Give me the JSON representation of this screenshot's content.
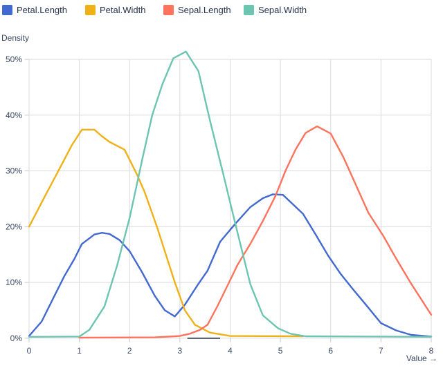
{
  "legend": {
    "note": "legend items are derived from chart_data.series"
  },
  "axes": {
    "y_title": "Density",
    "x_title": "Value →"
  },
  "chart_data": {
    "type": "line",
    "title": "",
    "xlabel": "Value →",
    "ylabel": "Density",
    "xlim": [
      0,
      8
    ],
    "ylim": [
      0,
      50
    ],
    "grid": true,
    "legend_position": "top",
    "x_ticks": [
      0,
      1,
      2,
      3,
      4,
      5,
      6,
      7,
      8
    ],
    "y_ticks": [
      {
        "value": 0,
        "label": "0%"
      },
      {
        "value": 10,
        "label": "10%"
      },
      {
        "value": 20,
        "label": "20%"
      },
      {
        "value": 30,
        "label": "30%"
      },
      {
        "value": 40,
        "label": "40%"
      },
      {
        "value": 50,
        "label": "50%"
      }
    ],
    "colors": {
      "blue": "#4269d0",
      "yellow": "#efb118",
      "coral": "#ff725c",
      "teal": "#6cc5b0",
      "grid": "#dadada",
      "tick": "#c2c6cf",
      "text": "#3a4661",
      "baseline": "#1f2d45"
    },
    "series": [
      {
        "name": "Petal.Length",
        "color": "#4269d0",
        "points": [
          [
            0,
            0.4
          ],
          [
            0.25,
            3.0
          ],
          [
            0.5,
            7.5
          ],
          [
            0.7,
            11.1
          ],
          [
            0.9,
            14.2
          ],
          [
            1.05,
            16.9
          ],
          [
            1.3,
            18.6
          ],
          [
            1.45,
            18.9
          ],
          [
            1.6,
            18.7
          ],
          [
            1.8,
            17.6
          ],
          [
            2.0,
            15.6
          ],
          [
            2.25,
            11.8
          ],
          [
            2.5,
            7.6
          ],
          [
            2.7,
            5.0
          ],
          [
            2.9,
            3.9
          ],
          [
            3.1,
            6.0
          ],
          [
            3.35,
            9.5
          ],
          [
            3.55,
            12.1
          ],
          [
            3.8,
            17.3
          ],
          [
            4.1,
            20.5
          ],
          [
            4.4,
            23.5
          ],
          [
            4.65,
            25.1
          ],
          [
            4.85,
            25.8
          ],
          [
            5.05,
            25.7
          ],
          [
            5.25,
            24.0
          ],
          [
            5.45,
            22.3
          ],
          [
            5.7,
            18.6
          ],
          [
            5.95,
            14.8
          ],
          [
            6.2,
            11.5
          ],
          [
            6.45,
            8.7
          ],
          [
            6.7,
            6.0
          ],
          [
            7.0,
            2.7
          ],
          [
            7.3,
            1.4
          ],
          [
            7.6,
            0.6
          ],
          [
            8,
            0.3
          ]
        ]
      },
      {
        "name": "Petal.Width",
        "color": "#efb118",
        "points": [
          [
            0,
            20.0
          ],
          [
            0.3,
            25.2
          ],
          [
            0.6,
            30.3
          ],
          [
            0.85,
            34.6
          ],
          [
            1.05,
            37.4
          ],
          [
            1.3,
            37.4
          ],
          [
            1.45,
            36.2
          ],
          [
            1.6,
            35.2
          ],
          [
            1.75,
            34.5
          ],
          [
            1.9,
            33.8
          ],
          [
            2.15,
            29.3
          ],
          [
            2.3,
            26.2
          ],
          [
            2.55,
            19.8
          ],
          [
            2.9,
            10.0
          ],
          [
            3.1,
            5.0
          ],
          [
            3.3,
            2.4
          ],
          [
            3.6,
            1.0
          ],
          [
            4.0,
            0.4
          ],
          [
            5.45,
            0.35
          ]
        ]
      },
      {
        "name": "Sepal.Length",
        "color": "#ff725c",
        "points": [
          [
            1.0,
            0.1
          ],
          [
            2.5,
            0.15
          ],
          [
            3.0,
            0.4
          ],
          [
            3.2,
            0.8
          ],
          [
            3.4,
            1.5
          ],
          [
            3.55,
            2.4
          ],
          [
            3.75,
            5.8
          ],
          [
            3.95,
            9.5
          ],
          [
            4.15,
            13.2
          ],
          [
            4.4,
            16.9
          ],
          [
            4.65,
            21.0
          ],
          [
            4.9,
            25.5
          ],
          [
            5.1,
            30.0
          ],
          [
            5.3,
            33.8
          ],
          [
            5.5,
            36.8
          ],
          [
            5.73,
            38.0
          ],
          [
            6.0,
            36.7
          ],
          [
            6.25,
            32.5
          ],
          [
            6.5,
            27.5
          ],
          [
            6.75,
            22.5
          ],
          [
            7.05,
            18.3
          ],
          [
            7.3,
            14.3
          ],
          [
            7.6,
            9.8
          ],
          [
            8,
            4.2
          ]
        ]
      },
      {
        "name": "Sepal.Width",
        "color": "#6cc5b0",
        "points": [
          [
            0,
            0.25
          ],
          [
            1.0,
            0.3
          ],
          [
            1.2,
            1.5
          ],
          [
            1.5,
            5.7
          ],
          [
            1.75,
            13.0
          ],
          [
            2.0,
            21.6
          ],
          [
            2.25,
            32.0
          ],
          [
            2.45,
            40.0
          ],
          [
            2.65,
            45.5
          ],
          [
            2.87,
            50.2
          ],
          [
            3.12,
            51.4
          ],
          [
            3.37,
            47.9
          ],
          [
            3.6,
            39.0
          ],
          [
            3.85,
            29.9
          ],
          [
            4.1,
            20.6
          ],
          [
            4.4,
            9.7
          ],
          [
            4.65,
            4.1
          ],
          [
            4.95,
            1.8
          ],
          [
            5.2,
            0.8
          ],
          [
            5.5,
            0.35
          ],
          [
            8,
            0.25
          ]
        ]
      }
    ],
    "baseline_segment": {
      "x1": 3.15,
      "x2": 3.8,
      "y": 0,
      "color": "#1f2d45"
    }
  }
}
